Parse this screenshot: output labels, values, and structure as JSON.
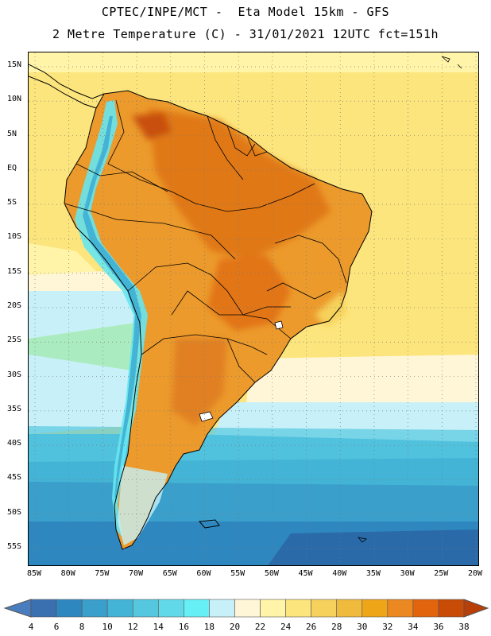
{
  "header": {
    "title_line1": "CPTEC/INPE/MCT -  Eta Model 15km - GFS",
    "title_line2": "2 Metre Temperature (C) - 31/01/2021 12UTC fct=151h"
  },
  "map": {
    "region": "South America",
    "variable": "2 Metre Temperature",
    "units": "C",
    "latitude_labels": [
      "15N",
      "10N",
      "5N",
      "EQ",
      "5S",
      "10S",
      "15S",
      "20S",
      "25S",
      "30S",
      "35S",
      "40S",
      "45S",
      "50S",
      "55S"
    ],
    "longitude_labels": [
      "85W",
      "80W",
      "75W",
      "70W",
      "65W",
      "60W",
      "55W",
      "50W",
      "45W",
      "40W",
      "35W",
      "30W",
      "25W",
      "20W"
    ],
    "latitudes": [
      15,
      10,
      5,
      0,
      -5,
      -10,
      -15,
      -20,
      -25,
      -30,
      -35,
      -40,
      -45,
      -50,
      -55
    ],
    "longitudes": [
      -85,
      -80,
      -75,
      -70,
      -65,
      -60,
      -55,
      -50,
      -45,
      -40,
      -35,
      -30,
      -25,
      -20
    ]
  },
  "colorbar": {
    "labels": [
      "4",
      "6",
      "8",
      "10",
      "12",
      "14",
      "16",
      "18",
      "20",
      "22",
      "24",
      "26",
      "28",
      "30",
      "32",
      "34",
      "36",
      "38"
    ],
    "colors": [
      "#3a6fb0",
      "#2f87c0",
      "#3a9fca",
      "#44b4d6",
      "#55c8e0",
      "#62d9e8",
      "#66f0f5",
      "#c8f0f8",
      "#fff6d8",
      "#fff4a8",
      "#fce57c",
      "#f6d25c",
      "#f0bb3c",
      "#eea518",
      "#ec8822",
      "#e2640c",
      "#c84b06"
    ],
    "low_end_color": "#4a7dbd",
    "high_end_color": "#b84008"
  }
}
